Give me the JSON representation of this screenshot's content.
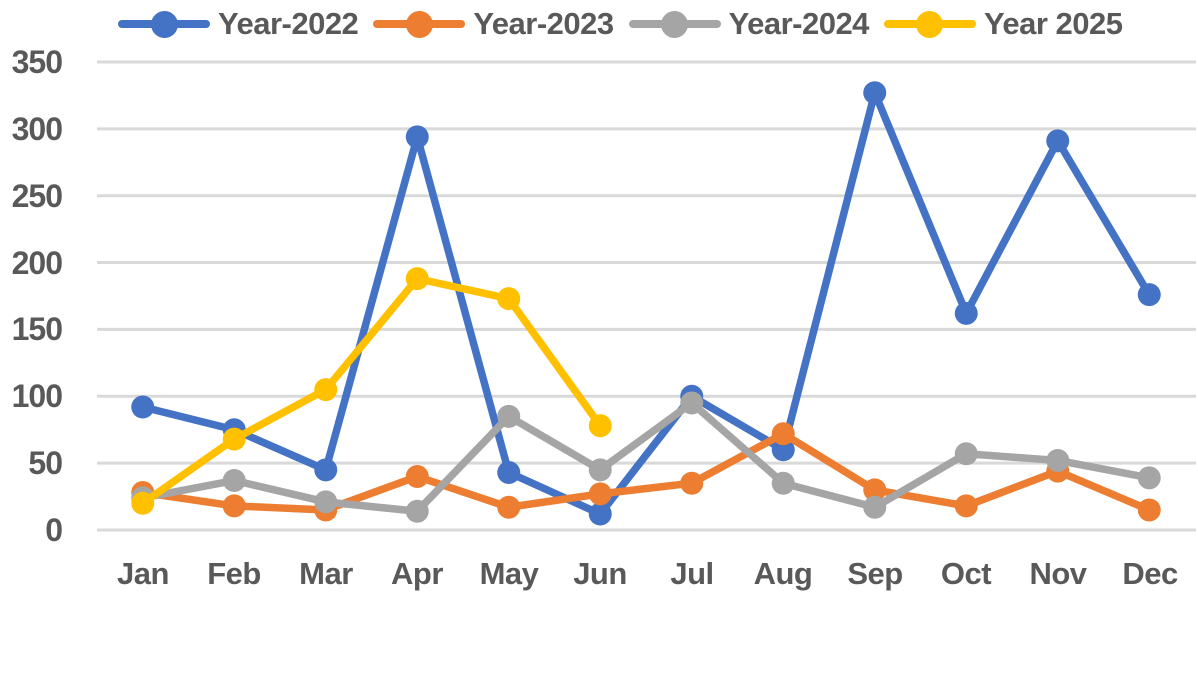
{
  "chart_data": {
    "type": "line",
    "title": "",
    "xlabel": "",
    "ylabel": "",
    "categories": [
      "Jan",
      "Feb",
      "Mar",
      "Apr",
      "May",
      "Jun",
      "Jul",
      "Aug",
      "Sep",
      "Oct",
      "Nov",
      "Dec"
    ],
    "series": [
      {
        "name": "Year-2022",
        "color": "#4472C4",
        "values": [
          92,
          75,
          45,
          294,
          43,
          12,
          100,
          60,
          327,
          162,
          291,
          176
        ]
      },
      {
        "name": "Year-2023",
        "color": "#ED7D31",
        "values": [
          28,
          18,
          15,
          40,
          17,
          27,
          35,
          72,
          30,
          18,
          44,
          15
        ]
      },
      {
        "name": "Year-2024",
        "color": "#A5A5A5",
        "values": [
          24,
          37,
          21,
          14,
          85,
          45,
          95,
          35,
          17,
          57,
          52,
          39
        ]
      },
      {
        "name": "Year 2025",
        "color": "#FFC000",
        "values": [
          20,
          68,
          105,
          188,
          173,
          78,
          null,
          null,
          null,
          null,
          null,
          null
        ]
      }
    ],
    "y_ticks": [
      "350",
      "300",
      "250",
      "200",
      "150",
      "100",
      "50",
      "0"
    ],
    "ylim": [
      0,
      350
    ],
    "y_tick_step": 50,
    "grid": "horizontal",
    "gridline_color": "#D9D9D9",
    "text_color": "#595959",
    "background_color": "#FFFFFF",
    "legend_position": "top",
    "marker": "circle"
  }
}
